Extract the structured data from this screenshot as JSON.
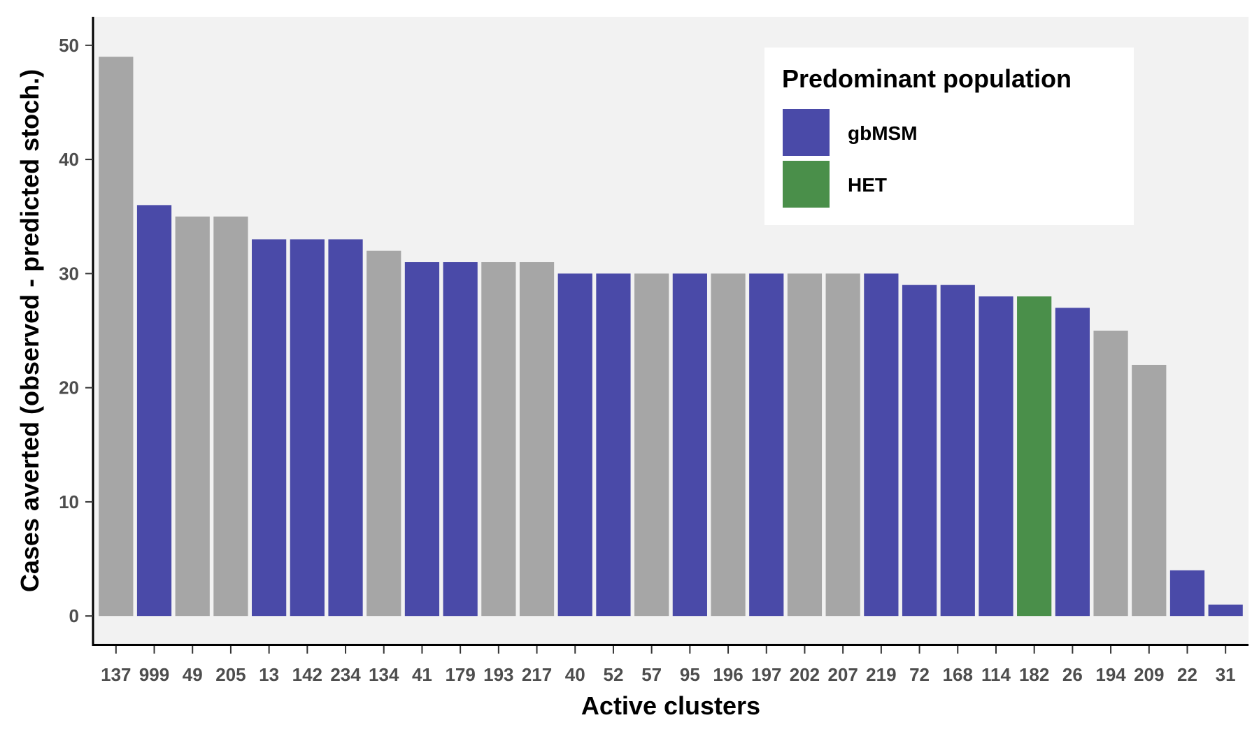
{
  "chart_data": {
    "type": "bar",
    "xlabel": "Active clusters",
    "ylabel": "Cases averted (observed - predicted stoch.)",
    "ylim": [
      -2.5,
      52.5
    ],
    "yticks": [
      0,
      10,
      20,
      30,
      40,
      50
    ],
    "grid": false,
    "categories": [
      "137",
      "999",
      "49",
      "205",
      "13",
      "142",
      "234",
      "134",
      "41",
      "179",
      "193",
      "217",
      "40",
      "52",
      "57",
      "95",
      "196",
      "197",
      "202",
      "207",
      "219",
      "72",
      "168",
      "114",
      "182",
      "26",
      "194",
      "209",
      "22",
      "31"
    ],
    "values": [
      49,
      36,
      35,
      35,
      33,
      33,
      33,
      32,
      31,
      31,
      31,
      31,
      30,
      30,
      30,
      30,
      30,
      30,
      30,
      30,
      30,
      29,
      29,
      28,
      28,
      27,
      25,
      22,
      4,
      1
    ],
    "groups": [
      "other",
      "gbMSM",
      "other",
      "other",
      "gbMSM",
      "gbMSM",
      "gbMSM",
      "other",
      "gbMSM",
      "gbMSM",
      "other",
      "other",
      "gbMSM",
      "gbMSM",
      "other",
      "gbMSM",
      "other",
      "gbMSM",
      "other",
      "other",
      "gbMSM",
      "gbMSM",
      "gbMSM",
      "gbMSM",
      "HET",
      "gbMSM",
      "other",
      "other",
      "gbMSM",
      "gbMSM"
    ],
    "legend": {
      "title": "Predominant population",
      "position": "top-right",
      "entries": [
        {
          "key": "gbMSM",
          "label": "gbMSM"
        },
        {
          "key": "HET",
          "label": "HET"
        }
      ]
    },
    "colors": {
      "gbMSM": "#4a4aa8",
      "HET": "#4a8f4a",
      "other": "#a6a6a6",
      "panel": "#f2f2f2"
    }
  }
}
